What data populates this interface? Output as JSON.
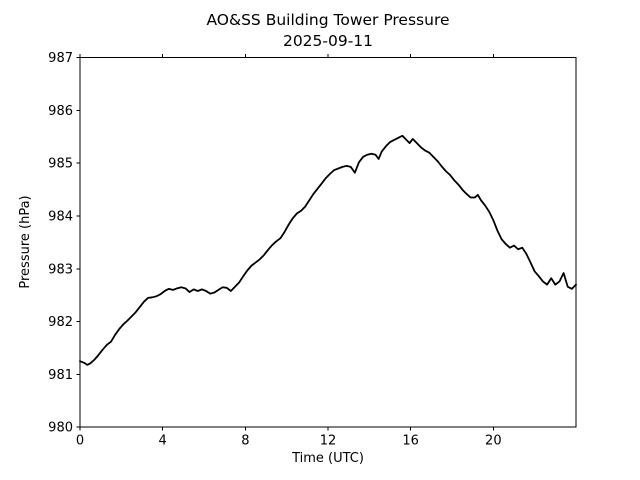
{
  "chart_data": {
    "type": "line",
    "title": "AO&SS Building Tower Pressure",
    "subtitle": "2025-09-11",
    "xlabel": "Time (UTC)",
    "ylabel": "Pressure (hPa)",
    "xlim": [
      0,
      24
    ],
    "ylim": [
      980,
      987
    ],
    "xticks": [
      0,
      4,
      8,
      12,
      16,
      20
    ],
    "yticks": [
      980,
      981,
      982,
      983,
      984,
      985,
      986,
      987
    ],
    "grid": false,
    "legend": null,
    "line_color": "#000000",
    "background_color": "#ffffff",
    "tick_sides": [
      "bottom",
      "left",
      "top"
    ],
    "series": [
      {
        "name": "pressure",
        "points": [
          [
            0,
            981.25
          ],
          [
            0.2,
            981.22
          ],
          [
            0.35,
            981.18
          ],
          [
            0.5,
            981.21
          ],
          [
            0.7,
            981.28
          ],
          [
            0.9,
            981.37
          ],
          [
            1.1,
            981.47
          ],
          [
            1.3,
            981.56
          ],
          [
            1.5,
            981.62
          ],
          [
            1.7,
            981.75
          ],
          [
            1.9,
            981.86
          ],
          [
            2.1,
            981.95
          ],
          [
            2.3,
            982.02
          ],
          [
            2.5,
            982.1
          ],
          [
            2.7,
            982.18
          ],
          [
            2.9,
            982.28
          ],
          [
            3.1,
            982.38
          ],
          [
            3.3,
            982.45
          ],
          [
            3.5,
            982.46
          ],
          [
            3.7,
            982.48
          ],
          [
            3.9,
            982.52
          ],
          [
            4.1,
            982.58
          ],
          [
            4.3,
            982.62
          ],
          [
            4.5,
            982.6
          ],
          [
            4.7,
            982.63
          ],
          [
            4.9,
            982.65
          ],
          [
            5.1,
            982.63
          ],
          [
            5.3,
            982.56
          ],
          [
            5.5,
            982.61
          ],
          [
            5.7,
            982.58
          ],
          [
            5.9,
            982.61
          ],
          [
            6.1,
            982.58
          ],
          [
            6.3,
            982.53
          ],
          [
            6.5,
            982.55
          ],
          [
            6.7,
            982.6
          ],
          [
            6.9,
            982.65
          ],
          [
            7.1,
            982.64
          ],
          [
            7.3,
            982.58
          ],
          [
            7.5,
            982.66
          ],
          [
            7.7,
            982.74
          ],
          [
            7.9,
            982.86
          ],
          [
            8.1,
            982.97
          ],
          [
            8.3,
            983.06
          ],
          [
            8.5,
            983.12
          ],
          [
            8.7,
            983.18
          ],
          [
            8.9,
            983.26
          ],
          [
            9.1,
            983.36
          ],
          [
            9.3,
            983.45
          ],
          [
            9.5,
            983.52
          ],
          [
            9.7,
            983.58
          ],
          [
            9.9,
            983.7
          ],
          [
            10.1,
            983.84
          ],
          [
            10.3,
            983.96
          ],
          [
            10.5,
            984.05
          ],
          [
            10.7,
            984.1
          ],
          [
            10.9,
            984.18
          ],
          [
            11.1,
            984.3
          ],
          [
            11.3,
            984.42
          ],
          [
            11.5,
            984.52
          ],
          [
            11.7,
            984.62
          ],
          [
            11.9,
            984.72
          ],
          [
            12.1,
            984.8
          ],
          [
            12.3,
            984.87
          ],
          [
            12.5,
            984.9
          ],
          [
            12.7,
            984.93
          ],
          [
            12.9,
            984.95
          ],
          [
            13.1,
            984.93
          ],
          [
            13.3,
            984.82
          ],
          [
            13.5,
            985.02
          ],
          [
            13.7,
            985.12
          ],
          [
            13.9,
            985.16
          ],
          [
            14.1,
            985.18
          ],
          [
            14.3,
            985.16
          ],
          [
            14.45,
            985.08
          ],
          [
            14.6,
            985.22
          ],
          [
            14.8,
            985.32
          ],
          [
            15,
            985.4
          ],
          [
            15.2,
            985.44
          ],
          [
            15.4,
            985.48
          ],
          [
            15.6,
            985.52
          ],
          [
            15.8,
            985.44
          ],
          [
            15.95,
            985.38
          ],
          [
            16.1,
            985.46
          ],
          [
            16.3,
            985.38
          ],
          [
            16.5,
            985.3
          ],
          [
            16.7,
            985.24
          ],
          [
            16.9,
            985.2
          ],
          [
            17.1,
            985.12
          ],
          [
            17.3,
            985.04
          ],
          [
            17.5,
            984.94
          ],
          [
            17.7,
            984.85
          ],
          [
            17.9,
            984.78
          ],
          [
            18.1,
            984.68
          ],
          [
            18.3,
            984.6
          ],
          [
            18.5,
            984.5
          ],
          [
            18.7,
            984.42
          ],
          [
            18.9,
            984.35
          ],
          [
            19.1,
            984.35
          ],
          [
            19.25,
            984.4
          ],
          [
            19.4,
            984.3
          ],
          [
            19.6,
            984.2
          ],
          [
            19.8,
            984.08
          ],
          [
            20,
            983.92
          ],
          [
            20.2,
            983.72
          ],
          [
            20.4,
            983.56
          ],
          [
            20.6,
            983.47
          ],
          [
            20.8,
            983.4
          ],
          [
            21,
            983.44
          ],
          [
            21.2,
            983.37
          ],
          [
            21.4,
            983.4
          ],
          [
            21.6,
            983.28
          ],
          [
            21.8,
            983.12
          ],
          [
            22,
            982.95
          ],
          [
            22.2,
            982.86
          ],
          [
            22.4,
            982.76
          ],
          [
            22.6,
            982.7
          ],
          [
            22.8,
            982.82
          ],
          [
            23,
            982.7
          ],
          [
            23.2,
            982.76
          ],
          [
            23.4,
            982.92
          ],
          [
            23.6,
            982.66
          ],
          [
            23.8,
            982.62
          ],
          [
            24,
            982.7
          ]
        ]
      }
    ]
  }
}
